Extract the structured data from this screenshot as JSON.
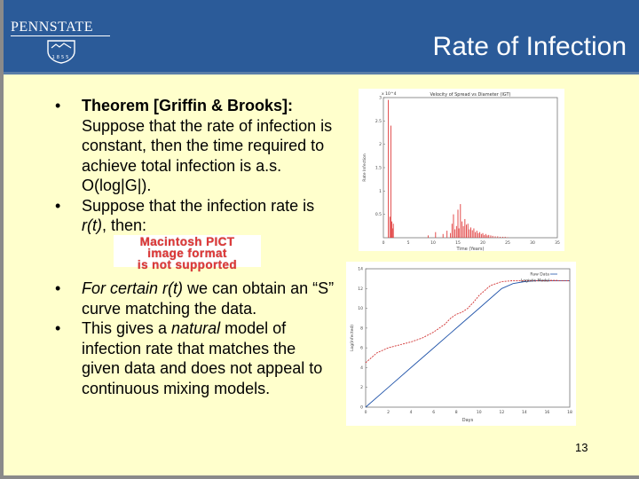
{
  "header": {
    "logo_text": "PENNSTATE",
    "logo_year": "1855",
    "title": "Rate of Infection"
  },
  "bullets_top": [
    {
      "label": "Theorem [Griffin & Brooks]:",
      "text": "Suppose that the rate of infection is constant, then the time required to achieve total infection is a.s. O(log|G|)."
    },
    {
      "pre": "Suppose that the infection rate is ",
      "italic": "r(t)",
      "post": ", then:"
    }
  ],
  "pict_placeholder": [
    "Macintosh PICT",
    "image format",
    "is not supported"
  ],
  "bullets_bottom": [
    {
      "italic": "For certain r(t)",
      "post": " we can obtain an “S” curve matching the data."
    },
    {
      "pre": "This gives a ",
      "italic": "natural",
      "post": " model of infection rate that matches the given data and does not appeal to continuous mixing models."
    }
  ],
  "page_number": "13",
  "chart_data": [
    {
      "type": "bar",
      "title": "Velocity of Spread vs Diameter (IGT)",
      "xlabel": "Time (Years)",
      "ylabel": "Rate Infection",
      "y_multiplier": "x 10^4",
      "xlim": [
        0,
        35
      ],
      "ylim": [
        0,
        3
      ],
      "x_ticks": [
        "0",
        "5",
        "10",
        "15",
        "20",
        "25",
        "30",
        "35"
      ],
      "y_ticks": [
        "0.5",
        "1",
        "1.5",
        "2",
        "2.5",
        "3"
      ],
      "color": "#e03a3a",
      "x": [
        1.0,
        1.3,
        1.5,
        1.7,
        1.9,
        2.0,
        9.0,
        10.5,
        12.0,
        12.8,
        13.5,
        13.8,
        14.1,
        14.4,
        14.7,
        15.0,
        15.2,
        15.5,
        15.8,
        16.1,
        16.4,
        16.7,
        17.0,
        17.3,
        17.6,
        17.9,
        18.2,
        18.5,
        18.8,
        19.1,
        19.4,
        19.7,
        20.0,
        20.3,
        20.6,
        20.9,
        21.2,
        21.6,
        22.0,
        22.5,
        23.0,
        23.5,
        24.0,
        24.5,
        25.0
      ],
      "values": [
        2.95,
        0.45,
        2.4,
        0.35,
        0.2,
        0.3,
        0.05,
        0.12,
        0.08,
        0.15,
        0.1,
        0.3,
        0.5,
        0.18,
        0.25,
        0.6,
        0.2,
        0.72,
        0.35,
        0.25,
        0.4,
        0.28,
        0.3,
        0.18,
        0.22,
        0.16,
        0.2,
        0.12,
        0.15,
        0.1,
        0.12,
        0.08,
        0.1,
        0.06,
        0.08,
        0.05,
        0.06,
        0.05,
        0.04,
        0.03,
        0.03,
        0.02,
        0.02,
        0.02,
        0.01
      ]
    },
    {
      "type": "line",
      "xlabel": "Days",
      "ylabel": "Log(Infected)",
      "xlim": [
        0,
        18
      ],
      "ylim": [
        0,
        14
      ],
      "x_ticks": [
        "0",
        "2",
        "4",
        "6",
        "8",
        "10",
        "12",
        "14",
        "16",
        "18"
      ],
      "y_ticks": [
        "0",
        "2",
        "4",
        "6",
        "8",
        "10",
        "12",
        "14"
      ],
      "legend_position": "top-right",
      "series": [
        {
          "name": "Raw Data",
          "color": "#2255aa",
          "style": "solid",
          "x": [
            0,
            2,
            4,
            6,
            8,
            10,
            11,
            12,
            13,
            14,
            15,
            16,
            17,
            18
          ],
          "y": [
            0,
            2,
            4,
            6,
            8,
            10,
            11,
            12,
            12.5,
            12.7,
            12.8,
            12.8,
            12.8,
            12.8
          ]
        },
        {
          "name": "Logistic Model",
          "color": "#d03030",
          "style": "dashed",
          "x": [
            0,
            1,
            2,
            3,
            4,
            5,
            6,
            7,
            7.5,
            8,
            8.5,
            9,
            9.5,
            10,
            11,
            12,
            13,
            14,
            15,
            16,
            17,
            18
          ],
          "y": [
            4.5,
            5.5,
            6.0,
            6.3,
            6.6,
            7.0,
            7.6,
            8.4,
            9.0,
            9.4,
            9.6,
            10.0,
            10.6,
            11.3,
            12.3,
            12.7,
            12.8,
            12.8,
            12.8,
            12.8,
            12.8,
            12.8
          ]
        }
      ]
    }
  ]
}
